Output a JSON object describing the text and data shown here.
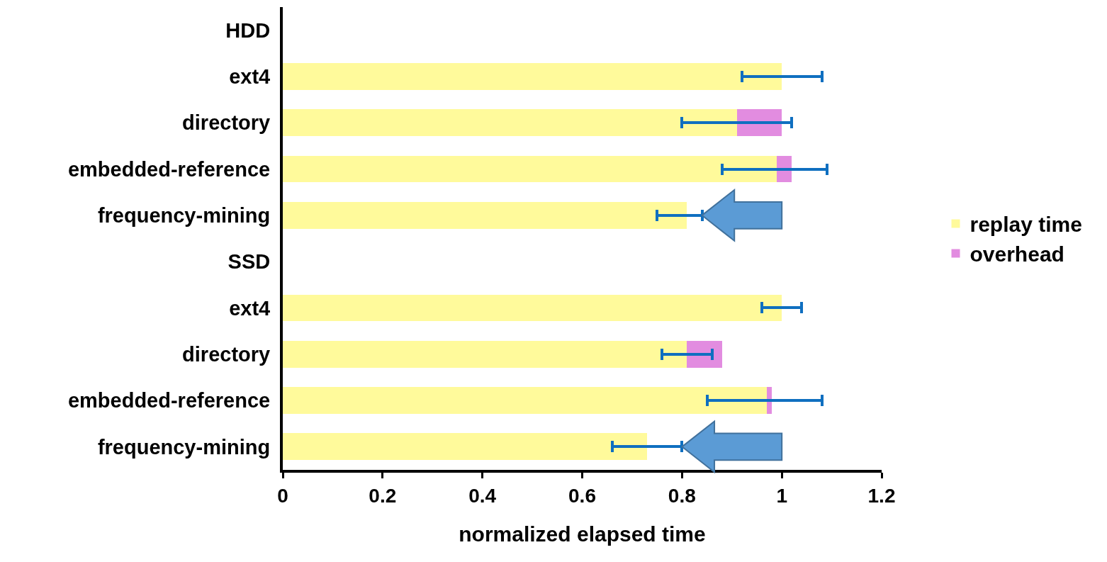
{
  "chart_data": {
    "type": "bar",
    "orientation": "horizontal",
    "stacked": true,
    "categories": [
      "HDD",
      "ext4",
      "directory",
      "embedded-reference",
      "frequency-mining",
      "SSD",
      "ext4",
      "directory",
      "embedded-reference",
      "frequency-mining"
    ],
    "series": [
      {
        "name": "replay time",
        "color": "#fffa9b",
        "values": [
          null,
          1.0,
          0.91,
          0.99,
          0.81,
          null,
          1.0,
          0.81,
          0.97,
          0.73
        ]
      },
      {
        "name": "overhead",
        "color": "#e28ce0",
        "values": [
          null,
          0,
          0.09,
          0.03,
          0,
          null,
          0,
          0.07,
          0.01,
          0
        ],
        "errors": [
          null,
          [
            0.92,
            1.08
          ],
          [
            0.8,
            1.02
          ],
          [
            0.88,
            1.09
          ],
          [
            0.75,
            0.84
          ],
          null,
          [
            0.96,
            1.04
          ],
          [
            0.76,
            0.86
          ],
          [
            0.85,
            1.08
          ],
          [
            0.66,
            0.8
          ]
        ]
      }
    ],
    "xlabel": "normalized elapsed time",
    "xlim": [
      0,
      1.2
    ],
    "xticks": [
      0,
      0.2,
      0.4,
      0.6,
      0.8,
      1,
      1.2
    ],
    "grid": false,
    "legend": "right"
  }
}
